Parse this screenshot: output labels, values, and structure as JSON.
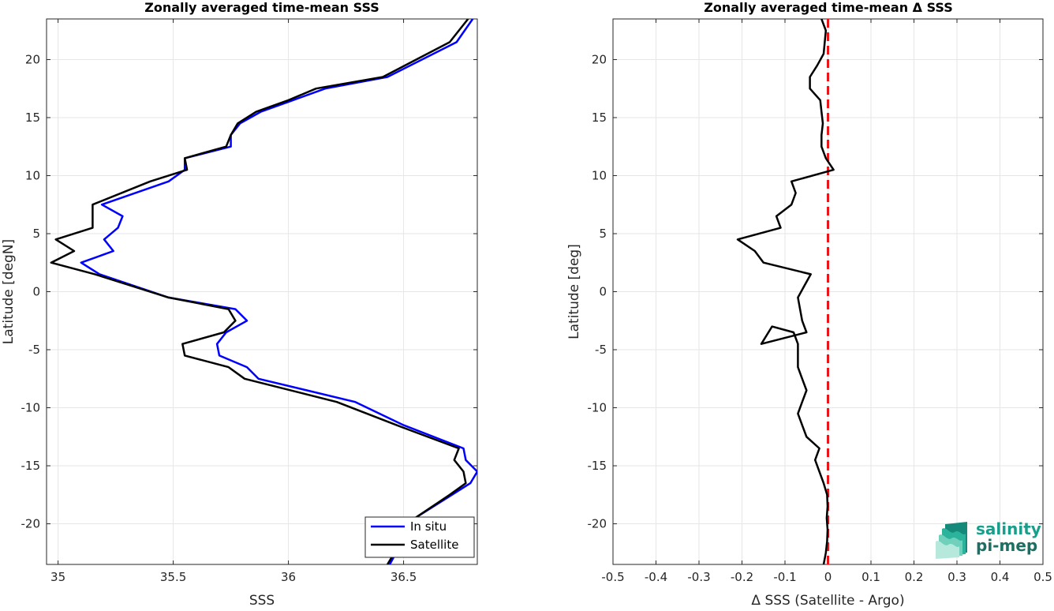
{
  "chart_data": [
    {
      "type": "line",
      "title": "Zonally averaged time-mean SSS",
      "xlabel": "SSS",
      "ylabel": "Latitude [degN]",
      "xlim": [
        34.95,
        36.82
      ],
      "ylim": [
        -23.5,
        23.5
      ],
      "xticks": [
        35,
        35.5,
        36,
        36.5
      ],
      "xtick_labels": [
        "35",
        "35.5",
        "36",
        "36.5"
      ],
      "yticks": [
        -20,
        -15,
        -10,
        -5,
        0,
        5,
        10,
        15,
        20
      ],
      "ytick_labels": [
        "-20",
        "-15",
        "-10",
        "-5",
        "0",
        "5",
        "10",
        "15",
        "20"
      ],
      "grid": true,
      "legend_position": "bottom-right",
      "series": [
        {
          "name": "In situ",
          "color": "#0000ff",
          "x": [
            36.44,
            36.55,
            36.71,
            36.79,
            36.82,
            36.77,
            36.76,
            36.5,
            36.29,
            35.87,
            35.82,
            35.7,
            35.69,
            35.73,
            35.82,
            35.77,
            35.48,
            35.18,
            35.1,
            35.24,
            35.2,
            35.26,
            35.28,
            35.19,
            35.48,
            35.55,
            35.55,
            35.75,
            35.75,
            35.79,
            35.88,
            36.02,
            36.16,
            36.43,
            36.73,
            36.8
          ],
          "y": [
            -23.5,
            -19.5,
            -17.5,
            -16.5,
            -15.5,
            -14.5,
            -13.5,
            -11.5,
            -9.5,
            -7.5,
            -6.5,
            -5.5,
            -4.5,
            -3.5,
            -2.5,
            -1.5,
            -0.5,
            1.5,
            2.5,
            3.5,
            4.5,
            5.5,
            6.5,
            7.5,
            9.5,
            10.5,
            11.5,
            12.5,
            13.5,
            14.5,
            15.5,
            16.5,
            17.5,
            18.5,
            21.5,
            23.5
          ]
        },
        {
          "name": "Satellite",
          "color": "#000000",
          "x": [
            36.43,
            36.55,
            36.7,
            36.77,
            36.76,
            36.72,
            36.74,
            36.47,
            36.21,
            35.81,
            35.74,
            35.55,
            35.54,
            35.72,
            35.77,
            35.74,
            35.48,
            35.16,
            34.97,
            35.07,
            34.99,
            35.15,
            35.15,
            35.15,
            35.4,
            35.56,
            35.55,
            35.73,
            35.75,
            35.78,
            35.86,
            36,
            36.12,
            36.41,
            36.7,
            36.78
          ],
          "y": [
            -23.5,
            -19.5,
            -17.5,
            -16.5,
            -15.5,
            -14.5,
            -13.5,
            -11.5,
            -9.5,
            -7.5,
            -6.5,
            -5.5,
            -4.5,
            -3.5,
            -2.5,
            -1.5,
            -0.5,
            1.5,
            2.5,
            3.5,
            4.5,
            5.5,
            6.5,
            7.5,
            9.5,
            10.5,
            11.5,
            12.5,
            13.5,
            14.5,
            15.5,
            16.5,
            17.5,
            18.5,
            21.5,
            23.5
          ]
        }
      ]
    },
    {
      "type": "line",
      "title": "Zonally averaged time-mean Δ SSS",
      "xlabel": "Δ SSS (Satellite - Argo)",
      "ylabel": "Latitude [deg]",
      "xlim": [
        -0.5,
        0.5
      ],
      "ylim": [
        -23.5,
        23.5
      ],
      "xticks": [
        -0.5,
        -0.4,
        -0.3,
        -0.2,
        -0.1,
        0,
        0.1,
        0.2,
        0.3,
        0.4,
        0.5
      ],
      "xtick_labels": [
        "-0.5",
        "-0.4",
        "-0.3",
        "-0.2",
        "-0.1",
        "0",
        "0.1",
        "0.2",
        "0.3",
        "0.4",
        "0.5"
      ],
      "yticks": [
        -20,
        -15,
        -10,
        -5,
        0,
        5,
        10,
        15,
        20
      ],
      "ytick_labels": [
        "-20",
        "-15",
        "-10",
        "-5",
        "0",
        "5",
        "10",
        "15",
        "20"
      ],
      "grid": true,
      "reference_line": {
        "x": 0,
        "color": "#e8161a",
        "style": "dashed"
      },
      "series": [
        {
          "name": "",
          "color": "#000000",
          "x": [
            -0.01,
            -0.005,
            -0.002,
            -0.001,
            -0.003,
            -0.001,
            -0.002,
            -0.01,
            -0.02,
            -0.03,
            -0.02,
            -0.05,
            -0.06,
            -0.07,
            -0.06,
            -0.05,
            -0.06,
            -0.07,
            -0.07,
            -0.07,
            -0.08,
            -0.13,
            -0.155,
            -0.05,
            -0.06,
            -0.065,
            -0.07,
            -0.055,
            -0.04,
            -0.15,
            -0.17,
            -0.21,
            -0.11,
            -0.12,
            -0.085,
            -0.075,
            -0.085,
            0.013,
            -0.005,
            -0.015,
            -0.015,
            -0.012,
            -0.015,
            -0.018,
            -0.042,
            -0.042,
            -0.025,
            -0.01,
            -0.005,
            -0.015
          ],
          "y": [
            -23.5,
            -22.5,
            -21.5,
            -20.5,
            -19.5,
            -18.5,
            -17.5,
            -16.5,
            -15.5,
            -14.5,
            -13.5,
            -12.5,
            -11.5,
            -10.5,
            -9.5,
            -8.5,
            -7.5,
            -6.5,
            -5.5,
            -4.5,
            -3.5,
            -3.0,
            -4.5,
            -3.5,
            -2.5,
            -1.5,
            -0.5,
            0.5,
            1.5,
            2.5,
            3.5,
            4.5,
            5.5,
            6.5,
            7.5,
            8.5,
            9.5,
            10.5,
            11.5,
            12.5,
            13.5,
            14.5,
            15.5,
            16.5,
            17.5,
            18.5,
            19.5,
            20.5,
            22.5,
            23.5
          ]
        }
      ]
    }
  ],
  "legend": {
    "items": [
      {
        "label": "In situ",
        "color": "#0000ff"
      },
      {
        "label": "Satellite",
        "color": "#000000"
      }
    ]
  },
  "logo": {
    "line1": "salinity",
    "line2": "pi-mep",
    "accent": "#1a9e8c"
  }
}
